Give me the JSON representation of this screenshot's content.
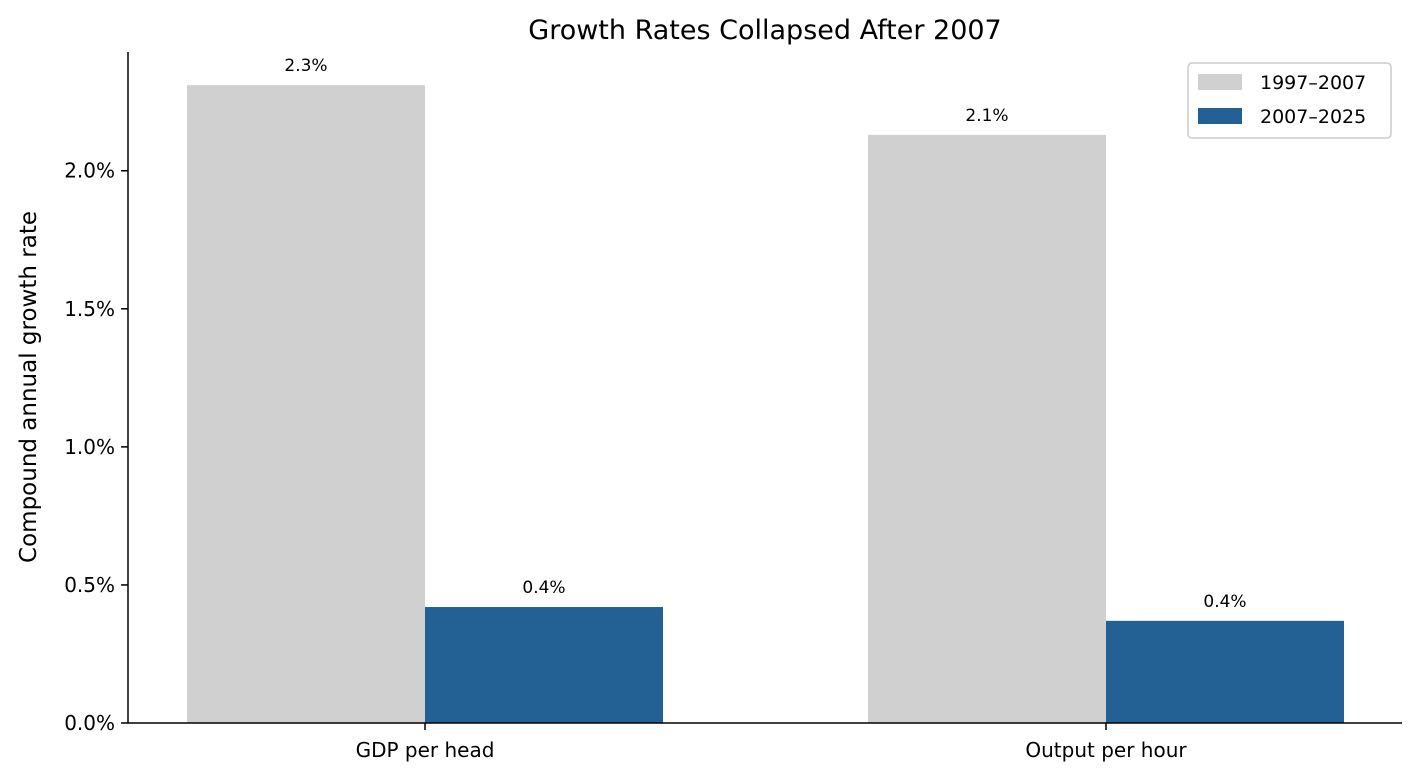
{
  "chart_data": {
    "type": "bar",
    "title": "Growth Rates Collapsed After 2007",
    "xlabel": "",
    "ylabel": "Compound annual growth rate",
    "categories": [
      "GDP per head",
      "Output per hour"
    ],
    "series": [
      {
        "name": "1997–2007",
        "color": "#d0d0d0",
        "values": [
          2.31,
          2.13
        ],
        "labels": [
          "2.3%",
          "2.1%"
        ]
      },
      {
        "name": "2007–2025",
        "color": "#236093",
        "values": [
          0.42,
          0.37
        ],
        "labels": [
          "0.4%",
          "0.4%"
        ]
      }
    ],
    "ylim": [
      0,
      2.43
    ],
    "yticks": [
      0.0,
      0.5,
      1.0,
      1.5,
      2.0
    ],
    "ytick_labels": [
      "0.0%",
      "0.5%",
      "1.0%",
      "1.5%",
      "2.0%"
    ],
    "grid": false,
    "legend_position": "top-right"
  }
}
